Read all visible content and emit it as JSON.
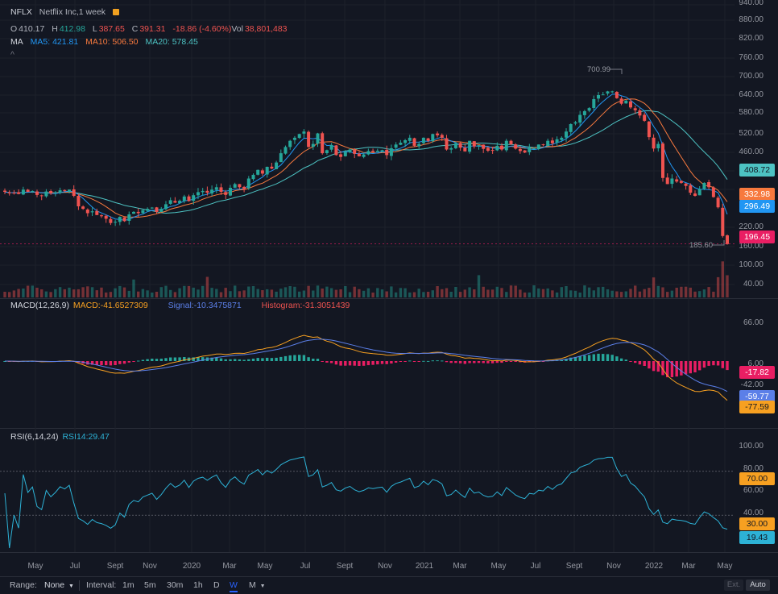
{
  "header": {
    "symbol": "NFLX",
    "name": "Netflix Inc,1 week",
    "ohlc": {
      "o_label": "O",
      "o": "410.17",
      "h_label": "H",
      "h": "412.98",
      "l_label": "L",
      "l": "387.65",
      "c_label": "C",
      "c": "391.31",
      "chg": "-18.86 (-4.60%)",
      "vol_label": "Vol",
      "vol": "38,801,483"
    },
    "ma": {
      "label": "MA",
      "ma5": "MA5: 421.81",
      "ma10": "MA10: 506.50",
      "ma20": "MA20: 578.45"
    },
    "collapse": "^"
  },
  "price_axis": [
    "940.00",
    "880.00",
    "820.00",
    "760.00",
    "700.00",
    "640.00",
    "580.00",
    "520.00",
    "460.00",
    "220.00",
    "160.00",
    "100.00",
    "40.00"
  ],
  "price_badges": {
    "ma20": "408.72",
    "ma10": "332.98",
    "ma5": "296.49",
    "last": "196.45"
  },
  "annotations": {
    "high": "700.99",
    "low": "185.60"
  },
  "macd": {
    "title": "MACD(12,26,9)",
    "macd": "MACD:-41.6527309",
    "signal": "Signal:-10.3475871",
    "hist": "Histogram:-31.3051439",
    "axis": [
      "66.00",
      "6.00",
      "-42.00"
    ],
    "badges": {
      "hist": "-17.82",
      "signal": "-59.77",
      "macd": "-77.59"
    }
  },
  "rsi": {
    "title": "RSI(6,14,24)",
    "value": "RSI14:29.47",
    "axis": [
      "100.00",
      "80.00",
      "60.00",
      "40.00"
    ],
    "badges": {
      "upper": "70.00",
      "lower": "30.00",
      "value": "19.43"
    }
  },
  "time_axis": [
    "May",
    "Jul",
    "Sept",
    "Nov",
    "2020",
    "Mar",
    "May",
    "Jul",
    "Sept",
    "Nov",
    "2021",
    "Mar",
    "May",
    "Jul",
    "Sept",
    "Nov",
    "2022",
    "Mar",
    "May"
  ],
  "toolbar": {
    "range_label": "Range:",
    "range_value": "None",
    "interval_label": "Interval:",
    "intervals": [
      "1m",
      "5m",
      "30m",
      "1h",
      "D",
      "W",
      "M"
    ],
    "active_interval": "W",
    "ext": "Ext.",
    "auto": "Auto"
  },
  "colors": {
    "up": "#26a69a",
    "down": "#ef5350",
    "ma5": "#2196f3",
    "ma10": "#f7793e",
    "ma20": "#4dc3c3",
    "rsi": "#2db2d6",
    "bg": "#131722"
  },
  "chart_data": {
    "type": "candlestick",
    "x_range": [
      "2019-04",
      "2022-05"
    ],
    "y_range": [
      0,
      960
    ],
    "close_weekly": [
      365,
      360,
      362,
      358,
      372,
      365,
      368,
      355,
      352,
      366,
      360,
      364,
      370,
      368,
      372,
      352,
      318,
      310,
      296,
      302,
      290,
      286,
      278,
      264,
      268,
      284,
      270,
      292,
      300,
      296,
      306,
      310,
      314,
      300,
      310,
      325,
      338,
      330,
      336,
      350,
      335,
      354,
      364,
      368,
      362,
      372,
      380,
      365,
      355,
      378,
      390,
      380,
      374,
      408,
      420,
      436,
      424,
      446,
      440,
      460,
      490,
      510,
      530,
      540,
      552,
      560,
      510,
      520,
      554,
      490,
      500,
      516,
      484,
      478,
      494,
      502,
      488,
      480,
      486,
      497,
      494,
      498,
      500,
      484,
      506,
      518,
      524,
      532,
      540,
      514,
      520,
      540,
      530,
      552,
      548,
      540,
      502,
      506,
      522,
      508,
      496,
      530,
      512,
      516,
      504,
      498,
      500,
      514,
      502,
      530,
      518,
      505,
      497,
      492,
      508,
      506,
      518,
      516,
      530,
      522,
      535,
      540,
      560,
      584,
      590,
      614,
      626,
      636,
      665,
      678,
      680,
      690,
      690,
      668,
      650,
      660,
      638,
      629,
      612,
      595,
      542,
      505,
      520,
      410,
      390,
      408,
      398,
      394,
      384,
      362,
      352,
      374,
      394,
      380,
      348,
      315,
      222,
      196
    ]
  }
}
